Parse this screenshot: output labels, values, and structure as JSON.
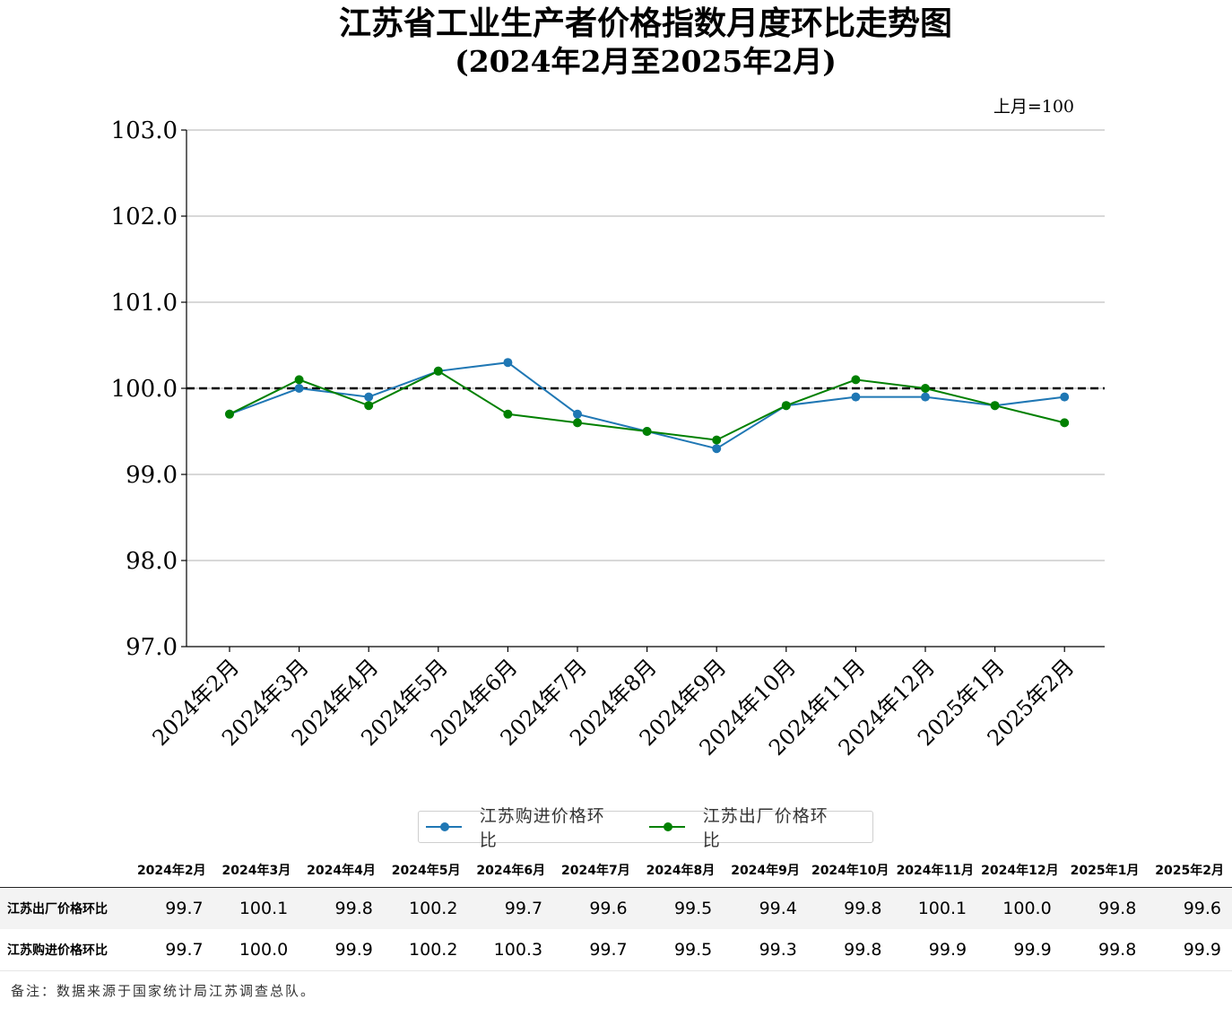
{
  "title_line1": "江苏省工业生产者价格指数月度环比走势图",
  "title_line2": "(2024年2月至2025年2月)",
  "unit_note": "上月=100",
  "colors": {
    "purchase": "#1f77b4",
    "ex_factory": "#008000",
    "reference": "#000000",
    "grid": "#b0b0b0"
  },
  "chart_data": {
    "type": "line",
    "categories": [
      "2024年2月",
      "2024年3月",
      "2024年4月",
      "2024年5月",
      "2024年6月",
      "2024年7月",
      "2024年8月",
      "2024年9月",
      "2024年10月",
      "2024年11月",
      "2024年12月",
      "2025年1月",
      "2025年2月"
    ],
    "series": [
      {
        "name": "江苏购进价格环比",
        "values": [
          99.7,
          100.0,
          99.9,
          100.2,
          100.3,
          99.7,
          99.5,
          99.3,
          99.8,
          99.9,
          99.9,
          99.8,
          99.9
        ]
      },
      {
        "name": "江苏出厂价格环比",
        "values": [
          99.7,
          100.1,
          99.8,
          100.2,
          99.7,
          99.6,
          99.5,
          99.4,
          99.8,
          100.1,
          100.0,
          99.8,
          99.6
        ]
      }
    ],
    "yticks": [
      "103.0",
      "102.0",
      "101.0",
      "100.0",
      "99.0",
      "98.0",
      "97.0"
    ],
    "ylim": [
      97.0,
      103.0
    ],
    "reference_line": 100.0,
    "grid": "horizontal",
    "legend_position": "bottom-center"
  },
  "table": {
    "headers": [
      "2024年2月",
      "2024年3月",
      "2024年4月",
      "2024年5月",
      "2024年6月",
      "2024年7月",
      "2024年8月",
      "2024年9月",
      "2024年10月",
      "2024年11月",
      "2024年12月",
      "2025年1月",
      "2025年2月"
    ],
    "rows": [
      {
        "label": "江苏出厂价格环比",
        "values": [
          "99.7",
          "100.1",
          "99.8",
          "100.2",
          "99.7",
          "99.6",
          "99.5",
          "99.4",
          "99.8",
          "100.1",
          "100.0",
          "99.8",
          "99.6"
        ]
      },
      {
        "label": "江苏购进价格环比",
        "values": [
          "99.7",
          "100.0",
          "99.9",
          "100.2",
          "100.3",
          "99.7",
          "99.5",
          "99.3",
          "99.8",
          "99.9",
          "99.9",
          "99.8",
          "99.9"
        ]
      }
    ]
  },
  "footnote": "备注：数据来源于国家统计局江苏调查总队。"
}
